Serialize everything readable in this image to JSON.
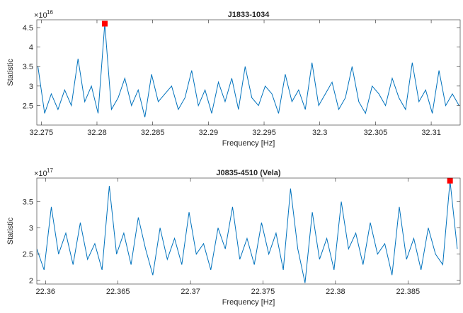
{
  "chart_data": [
    {
      "type": "line",
      "title": "J1833-1034",
      "xlabel": "Frequency [Hz]",
      "ylabel": "Statistic",
      "y_multiplier": {
        "base": "×10",
        "exponent": "16"
      },
      "xlim": [
        32.2746,
        32.3126
      ],
      "ylim": [
        2.0,
        4.7
      ],
      "xticks": [
        32.275,
        32.28,
        32.285,
        32.29,
        32.295,
        32.3,
        32.305,
        32.31
      ],
      "yticks": [
        2.5,
        3,
        3.5,
        4,
        4.5
      ],
      "series": [
        {
          "color": "#0072bd",
          "x": [
            32.2747,
            32.2753,
            32.2759,
            32.2765,
            32.2771,
            32.2777,
            32.2783,
            32.2789,
            32.2795,
            32.2801,
            32.2807,
            32.2813,
            32.2819,
            32.2825,
            32.2831,
            32.2837,
            32.2843,
            32.2849,
            32.2855,
            32.2861,
            32.2867,
            32.2873,
            32.2879,
            32.2885,
            32.2891,
            32.2897,
            32.2903,
            32.2909,
            32.2915,
            32.2921,
            32.2927,
            32.2933,
            32.2939,
            32.2945,
            32.2951,
            32.2957,
            32.2963,
            32.2969,
            32.2975,
            32.2981,
            32.2987,
            32.2993,
            32.2999,
            32.3005,
            32.3011,
            32.3017,
            32.3023,
            32.3029,
            32.3035,
            32.3041,
            32.3047,
            32.3053,
            32.3059,
            32.3065,
            32.3071,
            32.3077,
            32.3083,
            32.3089,
            32.3095,
            32.3101,
            32.3107,
            32.3113,
            32.3119,
            32.3125
          ],
          "values": [
            3.5,
            2.3,
            2.8,
            2.4,
            2.9,
            2.5,
            3.7,
            2.6,
            3.0,
            2.3,
            4.6,
            2.4,
            2.7,
            3.2,
            2.5,
            2.9,
            2.2,
            3.3,
            2.6,
            2.8,
            3.0,
            2.4,
            2.7,
            3.4,
            2.5,
            2.9,
            2.3,
            3.1,
            2.6,
            3.2,
            2.4,
            3.5,
            2.7,
            2.5,
            3.0,
            2.8,
            2.3,
            3.3,
            2.6,
            2.9,
            2.4,
            3.6,
            2.5,
            2.8,
            3.1,
            2.4,
            2.7,
            3.5,
            2.6,
            2.3,
            3.0,
            2.8,
            2.5,
            3.2,
            2.7,
            2.4,
            3.6,
            2.6,
            2.9,
            2.3,
            3.4,
            2.5,
            2.8,
            2.5
          ]
        }
      ],
      "peak": {
        "x": 32.2807,
        "value": 4.6,
        "color": "#ff0000"
      }
    },
    {
      "type": "line",
      "title": "J0835-4510 (Vela)",
      "xlabel": "Frequency [Hz]",
      "ylabel": "Statistic",
      "y_multiplier": {
        "base": "×10",
        "exponent": "17"
      },
      "xlim": [
        22.3594,
        22.3886
      ],
      "ylim": [
        1.93,
        3.95
      ],
      "xticks": [
        22.36,
        22.365,
        22.37,
        22.375,
        22.38,
        22.385
      ],
      "yticks": [
        2,
        2.5,
        3,
        3.5
      ],
      "series": [
        {
          "color": "#0072bd",
          "x": [
            22.3594,
            22.3599,
            22.3604,
            22.3609,
            22.3614,
            22.3619,
            22.3624,
            22.3629,
            22.3634,
            22.3639,
            22.3644,
            22.3649,
            22.3654,
            22.3659,
            22.3664,
            22.3669,
            22.3674,
            22.3679,
            22.3684,
            22.3689,
            22.3694,
            22.3699,
            22.3704,
            22.3709,
            22.3714,
            22.3719,
            22.3724,
            22.3729,
            22.3734,
            22.3739,
            22.3744,
            22.3749,
            22.3754,
            22.3759,
            22.3764,
            22.3769,
            22.3774,
            22.3779,
            22.3784,
            22.3789,
            22.3794,
            22.3799,
            22.3804,
            22.3809,
            22.3814,
            22.3819,
            22.3824,
            22.3829,
            22.3834,
            22.3839,
            22.3844,
            22.3849,
            22.3854,
            22.3859,
            22.3864,
            22.3869,
            22.3874,
            22.3879,
            22.3884
          ],
          "values": [
            2.6,
            2.2,
            3.4,
            2.5,
            2.9,
            2.3,
            3.1,
            2.4,
            2.7,
            2.2,
            3.8,
            2.5,
            2.9,
            2.3,
            3.2,
            2.6,
            2.1,
            3.0,
            2.4,
            2.8,
            2.3,
            3.3,
            2.5,
            2.7,
            2.2,
            3.0,
            2.6,
            3.4,
            2.4,
            2.8,
            2.3,
            3.1,
            2.5,
            2.9,
            2.2,
            3.75,
            2.6,
            1.95,
            3.3,
            2.4,
            2.8,
            2.2,
            3.5,
            2.6,
            2.9,
            2.3,
            3.1,
            2.5,
            2.7,
            2.1,
            3.4,
            2.4,
            2.8,
            2.2,
            3.0,
            2.5,
            2.3,
            3.9,
            2.6
          ]
        }
      ],
      "peak": {
        "x": 22.3879,
        "value": 3.9,
        "color": "#ff0000"
      }
    }
  ]
}
